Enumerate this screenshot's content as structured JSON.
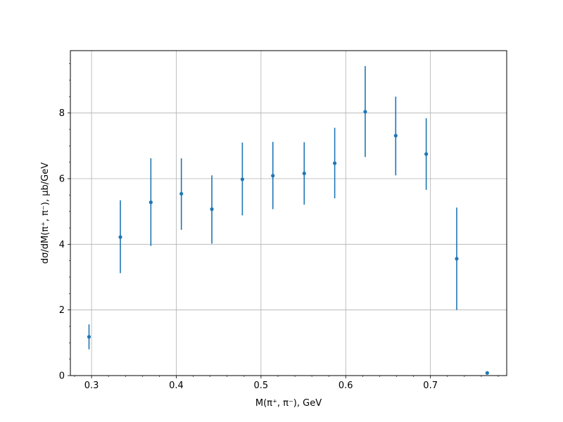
{
  "chart_data": {
    "type": "scatter",
    "title": "",
    "xlabel": "M(π⁺, π⁻), GeV",
    "ylabel": "dσ/dM(π⁺, π⁻), μb/GeV",
    "xlim": [
      0.275,
      0.79
    ],
    "ylim": [
      0,
      9.9
    ],
    "grid": true,
    "legend": "none",
    "xticks": [
      0.3,
      0.4,
      0.5,
      0.6,
      0.7
    ],
    "xtick_labels": [
      "0.3",
      "0.4",
      "0.5",
      "0.6",
      "0.7"
    ],
    "yticks": [
      0,
      2,
      4,
      6,
      8
    ],
    "ytick_labels": [
      "0",
      "2",
      "4",
      "6",
      "8"
    ],
    "color": "#1f77b4",
    "series": [
      {
        "x": [
          0.297,
          0.334,
          0.37,
          0.406,
          0.442,
          0.478,
          0.514,
          0.551,
          0.587,
          0.623,
          0.659,
          0.695,
          0.731,
          0.767
        ],
        "y": [
          1.18,
          4.22,
          5.28,
          5.54,
          5.07,
          5.98,
          6.09,
          6.16,
          6.47,
          8.04,
          7.31,
          6.75,
          3.56,
          0.08
        ],
        "yerr_low": [
          0.38,
          1.1,
          1.33,
          1.1,
          1.05,
          1.1,
          1.02,
          0.95,
          1.07,
          1.38,
          1.21,
          1.09,
          1.56,
          0.0
        ],
        "yerr_high": [
          0.38,
          1.12,
          1.34,
          1.08,
          1.03,
          1.12,
          1.03,
          0.95,
          1.08,
          1.39,
          1.19,
          1.09,
          1.56,
          0.0
        ]
      }
    ]
  }
}
